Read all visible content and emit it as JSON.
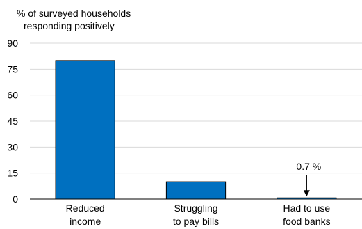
{
  "chart_data": {
    "type": "bar",
    "ylabel_lines": [
      "% of surveyed households",
      "responding positively"
    ],
    "categories": [
      [
        "Reduced",
        "income"
      ],
      [
        "Struggling",
        "to pay bills"
      ],
      [
        "Had to use",
        "food banks"
      ]
    ],
    "values": [
      80,
      10,
      0.7
    ],
    "ylim": [
      0,
      90
    ],
    "yticks": [
      0,
      15,
      30,
      45,
      60,
      75,
      90
    ],
    "grid": true,
    "annotation": {
      "category_index": 2,
      "text": "0.7 %"
    },
    "colors": {
      "bar": "#0070c0",
      "bar_edge": "#000000",
      "grid": "#d9d9d9",
      "axis": "#000000"
    }
  }
}
